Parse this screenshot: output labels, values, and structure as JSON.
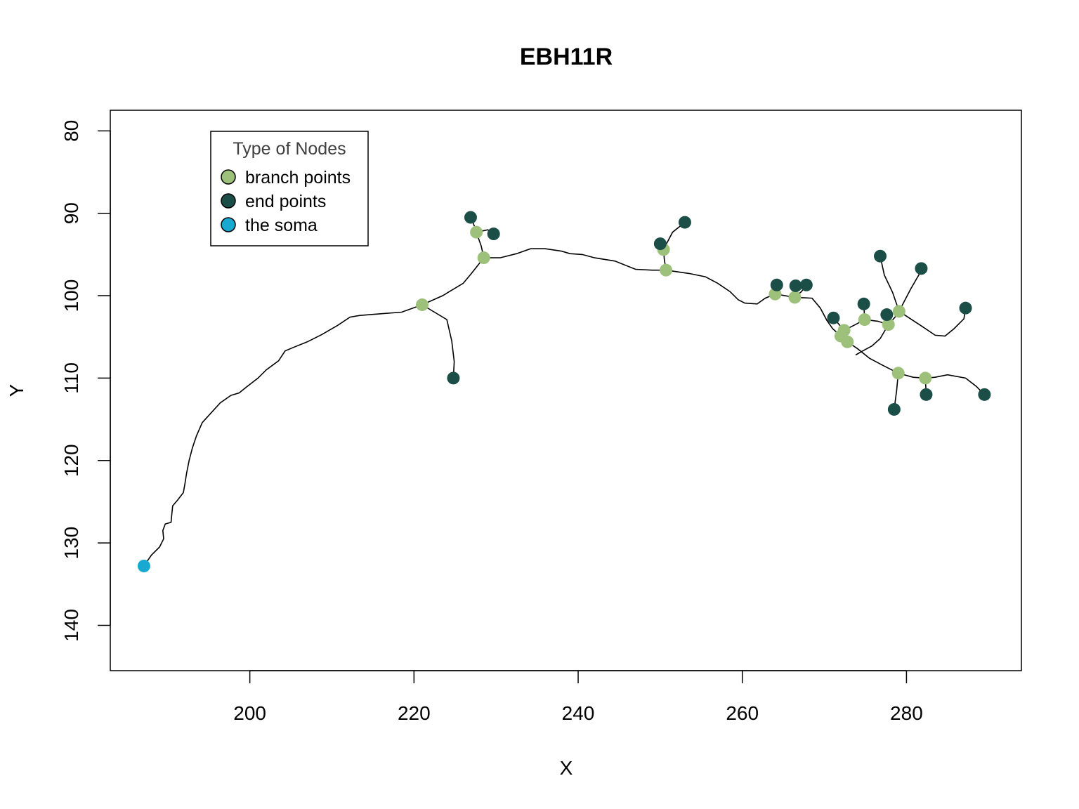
{
  "chart_data": {
    "type": "scatter",
    "title": "EBH11R",
    "xlabel": "X",
    "ylabel": "Y",
    "xlim": [
      183,
      294
    ],
    "ylim": [
      145.5,
      77.5
    ],
    "y_reversed": true,
    "x_ticks": [
      200,
      220,
      240,
      260,
      280
    ],
    "y_ticks": [
      80,
      90,
      100,
      110,
      120,
      130,
      140
    ],
    "legend": {
      "title": "Type of Nodes",
      "position": "top-left",
      "entries": [
        {
          "label": "branch points",
          "color": "#9dc07a"
        },
        {
          "label": "end points",
          "color": "#1b4e47"
        },
        {
          "label": "the soma",
          "color": "#17a9cf"
        }
      ]
    },
    "colors": {
      "branch": "#9dc07a",
      "end": "#1b4e47",
      "soma": "#17a9cf",
      "line": "#000000"
    },
    "soma": [
      [
        187.1,
        132.8
      ]
    ],
    "branch_points": [
      [
        221.0,
        101.1
      ],
      [
        227.6,
        92.3
      ],
      [
        228.5,
        95.4
      ],
      [
        250.4,
        94.4
      ],
      [
        250.7,
        96.9
      ],
      [
        264.0,
        99.8
      ],
      [
        266.4,
        100.2
      ],
      [
        272.4,
        104.2
      ],
      [
        272.0,
        104.9
      ],
      [
        272.8,
        105.6
      ],
      [
        274.9,
        102.9
      ],
      [
        277.8,
        103.5
      ],
      [
        279.1,
        101.9
      ],
      [
        279.0,
        109.4
      ],
      [
        282.3,
        110.0
      ]
    ],
    "end_points": [
      [
        224.8,
        110.0
      ],
      [
        226.9,
        90.5
      ],
      [
        229.7,
        92.5
      ],
      [
        250.0,
        93.7
      ],
      [
        253.0,
        91.1
      ],
      [
        264.2,
        98.7
      ],
      [
        266.5,
        98.8
      ],
      [
        267.8,
        98.7
      ],
      [
        271.1,
        102.7
      ],
      [
        274.8,
        101.0
      ],
      [
        277.6,
        102.3
      ],
      [
        276.8,
        95.2
      ],
      [
        281.8,
        96.7
      ],
      [
        287.2,
        101.5
      ],
      [
        278.5,
        113.8
      ],
      [
        282.4,
        112.0
      ],
      [
        289.5,
        112.0
      ]
    ],
    "segments": [
      [
        [
          187.1,
          132.8
        ],
        [
          188.0,
          131.5
        ],
        [
          189.0,
          130.5
        ],
        [
          189.5,
          129.5
        ],
        [
          189.4,
          128.5
        ],
        [
          189.7,
          127.7
        ],
        [
          190.4,
          127.5
        ],
        [
          190.5,
          126.5
        ],
        [
          190.6,
          125.5
        ],
        [
          191.2,
          124.8
        ],
        [
          191.9,
          123.9
        ],
        [
          192.1,
          122.8
        ],
        [
          192.3,
          121.5
        ],
        [
          192.6,
          120.0
        ],
        [
          193.0,
          118.5
        ],
        [
          193.5,
          117.0
        ],
        [
          194.2,
          115.4
        ],
        [
          195.2,
          114.3
        ],
        [
          196.4,
          113.0
        ],
        [
          197.7,
          112.1
        ],
        [
          198.7,
          111.8
        ],
        [
          199.7,
          111.0
        ],
        [
          201.0,
          110.0
        ],
        [
          202.0,
          109.0
        ],
        [
          203.5,
          107.9
        ],
        [
          204.3,
          106.7
        ],
        [
          205.5,
          106.2
        ],
        [
          207.0,
          105.6
        ],
        [
          208.8,
          104.7
        ],
        [
          210.7,
          103.6
        ],
        [
          212.2,
          102.6
        ],
        [
          213.4,
          102.4
        ],
        [
          215.8,
          102.2
        ],
        [
          218.5,
          102.0
        ],
        [
          221.0,
          101.1
        ]
      ],
      [
        [
          221.0,
          101.1
        ],
        [
          224.0,
          102.9
        ],
        [
          224.6,
          105.5
        ],
        [
          224.9,
          108.0
        ],
        [
          224.8,
          110.0
        ]
      ],
      [
        [
          221.0,
          101.1
        ],
        [
          223.5,
          100.0
        ],
        [
          226.0,
          98.5
        ],
        [
          227.0,
          97.3
        ],
        [
          228.5,
          95.4
        ]
      ],
      [
        [
          228.5,
          95.4
        ],
        [
          230.5,
          95.4
        ],
        [
          232.5,
          94.9
        ],
        [
          234.2,
          94.3
        ],
        [
          236.0,
          94.3
        ],
        [
          238.0,
          94.6
        ],
        [
          239.0,
          94.9
        ],
        [
          240.5,
          95.0
        ],
        [
          242.0,
          95.4
        ],
        [
          244.5,
          95.8
        ],
        [
          245.5,
          96.2
        ],
        [
          247.0,
          96.8
        ],
        [
          249.0,
          96.9
        ],
        [
          250.7,
          96.9
        ]
      ],
      [
        [
          228.5,
          95.4
        ],
        [
          228.2,
          94.0
        ],
        [
          227.6,
          92.3
        ]
      ],
      [
        [
          227.6,
          92.3
        ],
        [
          227.3,
          91.4
        ],
        [
          226.9,
          90.5
        ]
      ],
      [
        [
          227.6,
          92.3
        ],
        [
          229.0,
          92.0
        ],
        [
          229.7,
          92.5
        ]
      ],
      [
        [
          250.7,
          96.9
        ],
        [
          253.5,
          97.3
        ],
        [
          255.5,
          97.7
        ],
        [
          257.0,
          98.5
        ],
        [
          258.5,
          99.5
        ],
        [
          259.5,
          100.5
        ],
        [
          260.3,
          100.9
        ],
        [
          261.8,
          101.0
        ],
        [
          262.8,
          100.3
        ],
        [
          264.0,
          99.8
        ]
      ],
      [
        [
          250.7,
          96.9
        ],
        [
          250.5,
          95.6
        ],
        [
          250.4,
          94.4
        ]
      ],
      [
        [
          250.4,
          94.4
        ],
        [
          250.0,
          93.7
        ]
      ],
      [
        [
          250.4,
          94.4
        ],
        [
          251.5,
          92.3
        ],
        [
          253.0,
          91.1
        ]
      ],
      [
        [
          264.0,
          99.8
        ],
        [
          264.2,
          98.7
        ]
      ],
      [
        [
          264.0,
          99.8
        ],
        [
          266.4,
          100.2
        ]
      ],
      [
        [
          266.4,
          100.2
        ],
        [
          266.5,
          98.8
        ]
      ],
      [
        [
          266.4,
          100.2
        ],
        [
          267.2,
          99.5
        ],
        [
          267.8,
          98.7
        ]
      ],
      [
        [
          266.4,
          100.2
        ],
        [
          268.5,
          100.3
        ],
        [
          269.5,
          101.5
        ],
        [
          270.3,
          103.0
        ],
        [
          271.0,
          104.0
        ],
        [
          272.0,
          104.9
        ]
      ],
      [
        [
          272.0,
          104.9
        ],
        [
          272.4,
          104.2
        ]
      ],
      [
        [
          272.4,
          104.2
        ],
        [
          271.1,
          102.7
        ]
      ],
      [
        [
          272.4,
          104.2
        ],
        [
          273.8,
          103.5
        ],
        [
          274.9,
          102.9
        ]
      ],
      [
        [
          274.9,
          102.9
        ],
        [
          274.8,
          101.0
        ]
      ],
      [
        [
          274.9,
          102.9
        ],
        [
          276.5,
          103.1
        ],
        [
          277.8,
          103.5
        ]
      ],
      [
        [
          277.8,
          103.5
        ],
        [
          277.6,
          102.3
        ]
      ],
      [
        [
          277.8,
          103.5
        ],
        [
          278.6,
          102.6
        ],
        [
          279.1,
          101.9
        ]
      ],
      [
        [
          279.1,
          101.9
        ],
        [
          278.3,
          99.6
        ],
        [
          277.3,
          97.5
        ],
        [
          276.8,
          95.2
        ]
      ],
      [
        [
          279.1,
          101.9
        ],
        [
          280.5,
          99.2
        ],
        [
          281.5,
          97.5
        ],
        [
          281.8,
          96.7
        ]
      ],
      [
        [
          277.8,
          103.5
        ],
        [
          276.8,
          105.2
        ],
        [
          275.8,
          106.1
        ],
        [
          274.5,
          106.8
        ],
        [
          273.8,
          107.2
        ]
      ],
      [
        [
          272.0,
          104.9
        ],
        [
          272.8,
          105.6
        ]
      ],
      [
        [
          272.8,
          105.6
        ],
        [
          274.0,
          106.4
        ],
        [
          275.5,
          107.6
        ],
        [
          277.0,
          108.4
        ],
        [
          279.0,
          109.4
        ]
      ],
      [
        [
          279.0,
          109.4
        ],
        [
          278.8,
          111.5
        ],
        [
          278.5,
          113.8
        ]
      ],
      [
        [
          279.0,
          109.4
        ],
        [
          280.8,
          109.9
        ],
        [
          282.3,
          110.0
        ]
      ],
      [
        [
          282.3,
          110.0
        ],
        [
          282.4,
          112.0
        ]
      ],
      [
        [
          282.3,
          110.0
        ],
        [
          283.5,
          109.9
        ],
        [
          285.0,
          109.6
        ],
        [
          287.2,
          110.0
        ],
        [
          288.5,
          111.0
        ],
        [
          289.5,
          112.0
        ]
      ],
      [
        [
          279.1,
          101.9
        ],
        [
          282.0,
          103.8
        ],
        [
          283.5,
          104.8
        ],
        [
          284.7,
          104.9
        ],
        [
          285.8,
          104.0
        ],
        [
          287.0,
          102.8
        ],
        [
          287.2,
          101.5
        ]
      ]
    ]
  }
}
